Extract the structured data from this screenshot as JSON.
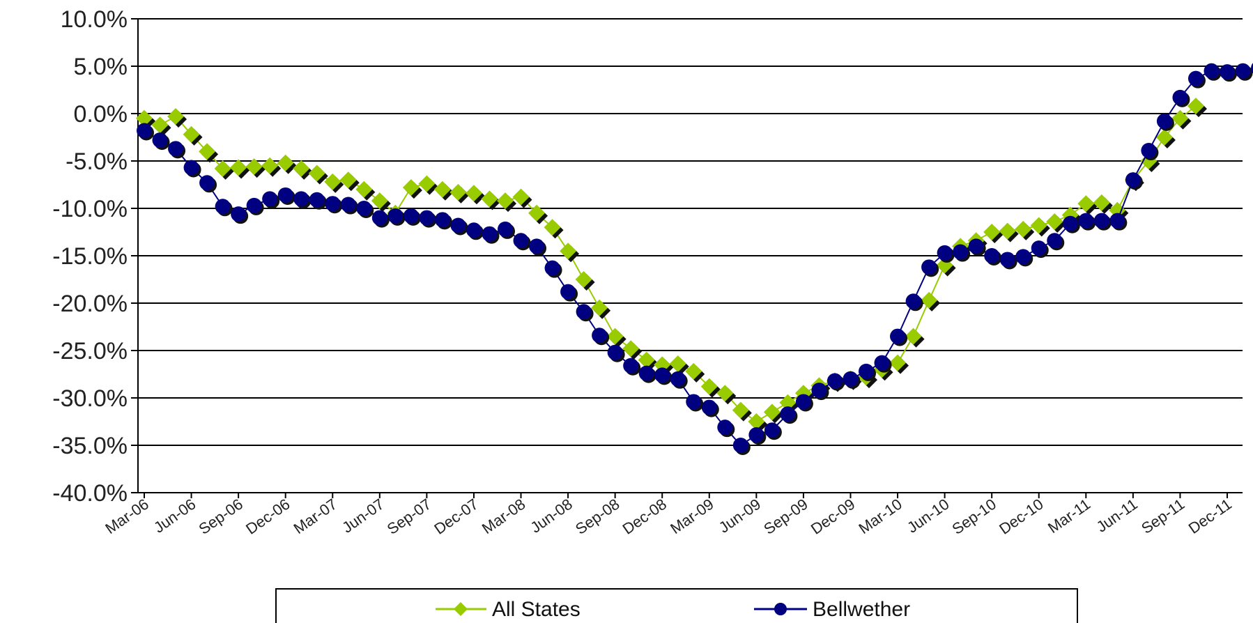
{
  "chart_data": {
    "type": "line",
    "title": "",
    "xlabel": "",
    "ylabel": "",
    "x_tick_labels": [
      "Mar-06",
      "Jun-06",
      "Sep-06",
      "Dec-06",
      "Mar-07",
      "Jun-07",
      "Sep-07",
      "Dec-07",
      "Mar-08",
      "Jun-08",
      "Sep-08",
      "Dec-08",
      "Mar-09",
      "Jun-09",
      "Sep-09",
      "Dec-09",
      "Mar-10",
      "Jun-10",
      "Sep-10",
      "Dec-10",
      "Mar-11",
      "Jun-11",
      "Sep-11",
      "Dec-11"
    ],
    "y_tick_labels": [
      "10.0%",
      "5.0%",
      "0.0%",
      "-5.0%",
      "-10.0%",
      "-15.0%",
      "-20.0%",
      "-25.0%",
      "-30.0%",
      "-35.0%",
      "-40.0%"
    ],
    "ylim": [
      -40,
      10
    ],
    "y_unit": "%",
    "grid": "horizontal",
    "legend_position": "bottom",
    "series": [
      {
        "name": "All States",
        "color": "#99CC00",
        "marker": "diamond",
        "values": [
          -0.5,
          -1.2,
          -0.3,
          -2.2,
          -4.0,
          -5.8,
          -5.7,
          -5.6,
          -5.5,
          -5.2,
          -5.8,
          -6.3,
          -7.2,
          -7.0,
          -8.0,
          -9.2,
          -10.5,
          -7.8,
          -7.4,
          -8.0,
          -8.3,
          -8.4,
          -9.0,
          -9.2,
          -8.8,
          -10.5,
          -12.0,
          -14.5,
          -17.5,
          -20.5,
          -23.5,
          -24.8,
          -26.0,
          -26.5,
          -26.4,
          -27.2,
          -28.8,
          -29.5,
          -31.3,
          -32.5,
          -31.5,
          -30.5,
          -29.5,
          -28.7,
          -28.2,
          -28.0,
          -27.8,
          -27.0,
          -26.3,
          -23.5,
          -19.7,
          -16.0,
          -14.0,
          -13.4,
          -12.5,
          -12.4,
          -12.2,
          -11.8,
          -11.4,
          -10.7,
          -9.5,
          -9.4,
          -10.2,
          -7.0,
          -5.0,
          -2.5,
          -0.5,
          0.8,
          null,
          null,
          null,
          null
        ]
      },
      {
        "name": "Bellwether",
        "color": "#000080",
        "marker": "circle",
        "values": [
          -1.8,
          -2.8,
          -3.7,
          -5.7,
          -7.3,
          -9.8,
          -10.6,
          -9.7,
          -9.0,
          -8.6,
          -9.0,
          -9.1,
          -9.5,
          -9.6,
          -10.0,
          -11.0,
          -10.8,
          -10.8,
          -11.0,
          -11.2,
          -11.8,
          -12.3,
          -12.7,
          -12.2,
          -13.4,
          -14.0,
          -16.3,
          -18.8,
          -20.9,
          -23.4,
          -25.2,
          -26.6,
          -27.4,
          -27.6,
          -28.0,
          -30.4,
          -31.0,
          -33.1,
          -35.0,
          -33.9,
          -33.4,
          -31.7,
          -30.4,
          -29.2,
          -28.2,
          -28.0,
          -27.2,
          -26.3,
          -23.5,
          -19.8,
          -16.2,
          -14.7,
          -14.6,
          -14.0,
          -15.0,
          -15.4,
          -15.1,
          -14.2,
          -13.4,
          -11.6,
          -11.3,
          -11.3,
          -11.3,
          -7.0,
          -3.9,
          -0.8,
          1.7,
          3.7,
          4.5,
          4.4,
          4.5,
          4.8
        ]
      }
    ]
  }
}
